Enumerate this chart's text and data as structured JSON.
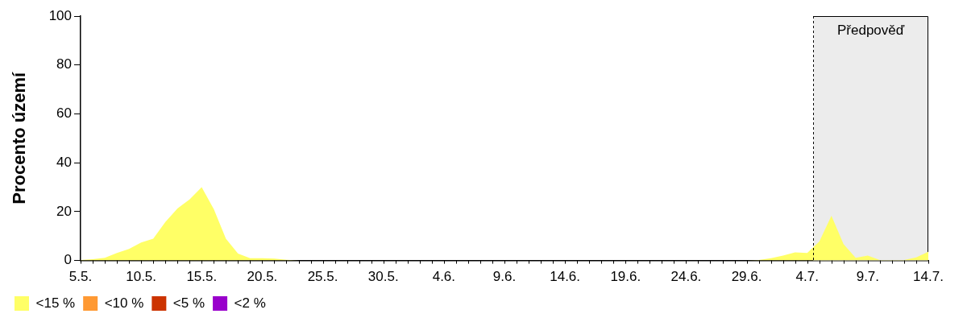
{
  "chart_data": {
    "type": "area",
    "ylabel": "Procento území",
    "x": [
      "--05-05",
      "--05-06",
      "--05-07",
      "--05-08",
      "--05-09",
      "--05-10",
      "--05-11",
      "--05-12",
      "--05-13",
      "--05-14",
      "--05-15",
      "--05-16",
      "--05-17",
      "--05-18",
      "--05-19",
      "--05-20",
      "--05-21",
      "--05-22",
      "--05-23",
      "--05-24",
      "--05-25",
      "--05-26",
      "--05-27",
      "--05-28",
      "--05-29",
      "--05-30",
      "--05-31",
      "--06-01",
      "--06-02",
      "--06-03",
      "--06-04",
      "--06-05",
      "--06-06",
      "--06-07",
      "--06-08",
      "--06-09",
      "--06-10",
      "--06-11",
      "--06-12",
      "--06-13",
      "--06-14",
      "--06-15",
      "--06-16",
      "--06-17",
      "--06-18",
      "--06-19",
      "--06-20",
      "--06-21",
      "--06-22",
      "--06-23",
      "--06-24",
      "--06-25",
      "--06-26",
      "--06-27",
      "--06-28",
      "--06-29",
      "--06-30",
      "--07-01",
      "--07-02",
      "--07-03",
      "--07-04",
      "--07-05",
      "--07-06",
      "--07-07",
      "--07-08",
      "--07-09",
      "--07-10",
      "--07-11",
      "--07-12",
      "--07-13",
      "--07-14"
    ],
    "series": [
      {
        "name": "<15 %",
        "color": "#ffff66",
        "values": [
          0.2,
          0.5,
          1.1,
          3.1,
          4.7,
          7.4,
          8.9,
          15.8,
          21.3,
          25,
          30,
          21,
          8.9,
          2.8,
          0.9,
          0.9,
          0.8,
          0.3,
          0,
          0,
          0,
          0,
          0,
          0,
          0,
          0,
          0,
          0,
          0,
          0,
          0,
          0,
          0,
          0,
          0,
          0,
          0,
          0,
          0,
          0,
          0,
          0,
          0,
          0,
          0,
          0,
          0,
          0,
          0,
          0,
          0,
          0,
          0,
          0,
          0,
          0,
          0.2,
          0.9,
          2,
          3.3,
          3.1,
          7.8,
          18.3,
          6.7,
          1.1,
          2,
          0.2,
          0.2,
          0.2,
          1.3,
          3.6
        ]
      },
      {
        "name": "<10 %",
        "color": "#ff9933",
        "values": [
          null,
          null,
          null,
          null,
          null,
          null,
          null,
          null,
          null,
          null,
          null,
          null,
          null,
          null,
          null,
          null,
          null,
          null,
          null,
          null,
          null,
          null,
          null,
          null,
          null,
          null,
          null,
          null,
          null,
          null,
          null,
          null,
          null,
          null,
          null,
          null,
          null,
          null,
          null,
          null,
          null,
          null,
          null,
          null,
          null,
          null,
          null,
          null,
          null,
          null,
          null,
          null,
          null,
          null,
          null,
          null,
          null,
          null,
          null,
          null,
          null,
          null,
          null,
          null,
          null,
          null,
          null,
          null,
          null,
          null,
          null
        ]
      },
      {
        "name": "<5 %",
        "color": "#cc3300",
        "values": [
          null,
          null,
          null,
          null,
          null,
          null,
          null,
          null,
          null,
          null,
          null,
          null,
          null,
          null,
          null,
          null,
          null,
          null,
          null,
          null,
          null,
          null,
          null,
          null,
          null,
          null,
          null,
          null,
          null,
          null,
          null,
          null,
          null,
          null,
          null,
          null,
          null,
          null,
          null,
          null,
          null,
          null,
          null,
          null,
          null,
          null,
          null,
          null,
          null,
          null,
          null,
          null,
          null,
          null,
          null,
          null,
          null,
          null,
          null,
          null,
          null,
          null,
          null,
          null,
          null,
          null,
          null,
          null,
          null,
          null,
          null
        ]
      },
      {
        "name": "<2 %",
        "color": "#9900cc",
        "values": [
          null,
          null,
          null,
          null,
          null,
          null,
          null,
          null,
          null,
          null,
          null,
          null,
          null,
          null,
          null,
          null,
          null,
          null,
          null,
          null,
          null,
          null,
          null,
          null,
          null,
          null,
          null,
          null,
          null,
          null,
          null,
          null,
          null,
          null,
          null,
          null,
          null,
          null,
          null,
          null,
          null,
          null,
          null,
          null,
          null,
          null,
          null,
          null,
          null,
          null,
          null,
          null,
          null,
          null,
          null,
          null,
          null,
          null,
          null,
          null,
          null,
          null,
          null,
          null,
          null,
          null,
          null,
          null,
          null,
          null,
          null
        ]
      }
    ],
    "xlim": [
      "--05-05",
      "--07-14"
    ],
    "xticks": [
      {
        "value": "--05-05",
        "label": "5.5."
      },
      {
        "value": "--05-10",
        "label": "10.5."
      },
      {
        "value": "--05-15",
        "label": "15.5."
      },
      {
        "value": "--05-20",
        "label": "20.5."
      },
      {
        "value": "--05-25",
        "label": "25.5."
      },
      {
        "value": "--05-30",
        "label": "30.5."
      },
      {
        "value": "--06-04",
        "label": "4.6."
      },
      {
        "value": "--06-09",
        "label": "9.6."
      },
      {
        "value": "--06-14",
        "label": "14.6."
      },
      {
        "value": "--06-19",
        "label": "19.6."
      },
      {
        "value": "--06-24",
        "label": "24.6."
      },
      {
        "value": "--06-29",
        "label": "29.6."
      },
      {
        "value": "--07-04",
        "label": "4.7."
      },
      {
        "value": "--07-09",
        "label": "9.7."
      },
      {
        "value": "--07-14",
        "label": "14.7."
      }
    ],
    "ylim": [
      0,
      100
    ],
    "yticks": [
      0,
      20,
      40,
      60,
      80,
      100
    ],
    "grid": false,
    "legend": "bottom left",
    "ref_lines": [
      {
        "axis": "x",
        "value": "--07-04T12:00",
        "line_style": "dashed",
        "color": "#000000"
      }
    ],
    "bands": [
      {
        "axis": "x",
        "from": "--07-04T12:00",
        "to": "--07-14",
        "label": "Předpověď",
        "color": "#ececec"
      }
    ]
  }
}
